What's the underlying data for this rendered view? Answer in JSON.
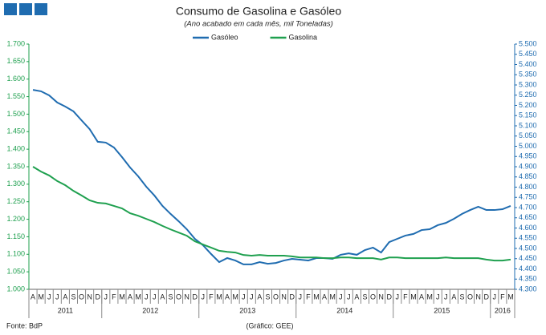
{
  "chart_data": {
    "type": "line",
    "title": "Consumo de Gasolina e Gasóleo",
    "subtitle": "(Ano acabado em cada mês, mil Toneladas)",
    "source": "Fonte: BdP",
    "credit": "(Gráfico: GEE)",
    "legend": "top",
    "categories": [
      "A",
      "M",
      "J",
      "J",
      "A",
      "S",
      "O",
      "N",
      "D",
      "J",
      "F",
      "M",
      "A",
      "M",
      "J",
      "J",
      "A",
      "S",
      "O",
      "N",
      "D",
      "J",
      "F",
      "M",
      "A",
      "M",
      "J",
      "J",
      "A",
      "S",
      "O",
      "N",
      "D",
      "J",
      "F",
      "M",
      "A",
      "M",
      "J",
      "J",
      "A",
      "S",
      "O",
      "N",
      "D",
      "J",
      "F",
      "M",
      "A",
      "M",
      "J",
      "J",
      "A",
      "S",
      "O",
      "N",
      "D",
      "J",
      "F",
      "M"
    ],
    "years": [
      "2011",
      "2012",
      "2013",
      "2014",
      "2015",
      "2016"
    ],
    "series": [
      {
        "name": "Gasóleo",
        "color": "#1f6cb0",
        "axis": "y2",
        "values": [
          5276,
          5269,
          5249,
          5214,
          5194,
          5171,
          5127,
          5084,
          5022,
          5018,
          4994,
          4947,
          4896,
          4853,
          4802,
          4759,
          4708,
          4669,
          4633,
          4594,
          4547,
          4516,
          4473,
          4433,
          4453,
          4441,
          4422,
          4422,
          4433,
          4425,
          4429,
          4441,
          4449,
          4445,
          4441,
          4453,
          4453,
          4449,
          4469,
          4476,
          4469,
          4492,
          4504,
          4480,
          4531,
          4547,
          4563,
          4571,
          4590,
          4594,
          4614,
          4625,
          4645,
          4669,
          4688,
          4704,
          4688,
          4688,
          4692,
          4708
        ]
      },
      {
        "name": "Gasolina",
        "color": "#1fa04f",
        "axis": "y",
        "values": [
          1350,
          1336,
          1325,
          1309,
          1297,
          1281,
          1268,
          1254,
          1247,
          1245,
          1238,
          1231,
          1217,
          1210,
          1201,
          1192,
          1181,
          1171,
          1162,
          1153,
          1137,
          1128,
          1119,
          1110,
          1107,
          1105,
          1098,
          1096,
          1098,
          1096,
          1096,
          1096,
          1094,
          1091,
          1091,
          1091,
          1089,
          1089,
          1091,
          1091,
          1089,
          1089,
          1089,
          1085,
          1091,
          1091,
          1089,
          1089,
          1089,
          1089,
          1089,
          1091,
          1089,
          1089,
          1089,
          1089,
          1085,
          1082,
          1082,
          1085
        ]
      }
    ],
    "ylim": [
      1000,
      1700
    ],
    "yticks": [
      {
        "value": 1000,
        "label": "1.000"
      },
      {
        "value": 1050,
        "label": "1.050"
      },
      {
        "value": 1100,
        "label": "1.100"
      },
      {
        "value": 1150,
        "label": "1.150"
      },
      {
        "value": 1200,
        "label": "1.200"
      },
      {
        "value": 1250,
        "label": "1.250"
      },
      {
        "value": 1300,
        "label": "1.300"
      },
      {
        "value": 1350,
        "label": "1.350"
      },
      {
        "value": 1400,
        "label": "1.400"
      },
      {
        "value": 1450,
        "label": "1.450"
      },
      {
        "value": 1500,
        "label": "1.500"
      },
      {
        "value": 1550,
        "label": "1.550"
      },
      {
        "value": 1600,
        "label": "1.600"
      },
      {
        "value": 1650,
        "label": "1.650"
      },
      {
        "value": 1700,
        "label": "1.700"
      }
    ],
    "y2lim": [
      4300,
      5500
    ],
    "y2ticks": [
      {
        "value": 4300,
        "label": "4.300"
      },
      {
        "value": 4350,
        "label": "4.350"
      },
      {
        "value": 4400,
        "label": "4.400"
      },
      {
        "value": 4450,
        "label": "4.450"
      },
      {
        "value": 4500,
        "label": "4.500"
      },
      {
        "value": 4550,
        "label": "4.550"
      },
      {
        "value": 4600,
        "label": "4.600"
      },
      {
        "value": 4650,
        "label": "4.650"
      },
      {
        "value": 4700,
        "label": "4.700"
      },
      {
        "value": 4750,
        "label": "4.750"
      },
      {
        "value": 4800,
        "label": "4.800"
      },
      {
        "value": 4850,
        "label": "4.850"
      },
      {
        "value": 4900,
        "label": "4.900"
      },
      {
        "value": 4950,
        "label": "4.950"
      },
      {
        "value": 5000,
        "label": "5.000"
      },
      {
        "value": 5050,
        "label": "5.050"
      },
      {
        "value": 5100,
        "label": "5.100"
      },
      {
        "value": 5150,
        "label": "5.150"
      },
      {
        "value": 5200,
        "label": "5.200"
      },
      {
        "value": 5250,
        "label": "5.250"
      },
      {
        "value": 5300,
        "label": "5.300"
      },
      {
        "value": 5350,
        "label": "5.350"
      },
      {
        "value": 5400,
        "label": "5.400"
      },
      {
        "value": 5450,
        "label": "5.450"
      },
      {
        "value": 5500,
        "label": "5.500"
      }
    ],
    "grid": false
  }
}
